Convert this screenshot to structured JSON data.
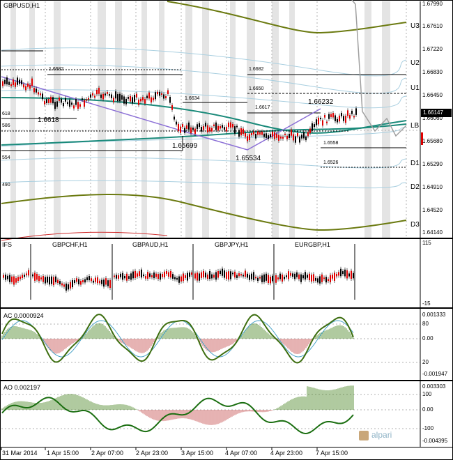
{
  "main_chart": {
    "title": "GBPUSD,H1",
    "price_axis": [
      "1.67990",
      "1.67610",
      "1.67220",
      "1.66830",
      "1.66450",
      "1.66060",
      "1.65680",
      "1.65290",
      "1.64910",
      "1.64520",
      "1.64140"
    ],
    "current_price": "1.66147",
    "pivots": [
      "U3",
      "U2",
      "U1",
      "LB",
      "D1",
      "D2",
      "D3"
    ],
    "levels": [
      "1.6682",
      "1.6634",
      "1.6682",
      "1.6650",
      "1.6617",
      "1.6558",
      "1.6526"
    ],
    "annotations": [
      "1.6618",
      "1.65699",
      "1.65534",
      "1.66232"
    ],
    "edge_labels": [
      "618",
      "586",
      "554",
      "490"
    ]
  },
  "ifs_panel": {
    "title": "IFS",
    "pairs": [
      "GBPCHF,H1",
      "GBPAUD,H1",
      "GBPJPY,H1",
      "EURGBP,H1"
    ],
    "axis": [
      "115",
      "-15"
    ]
  },
  "ac_panel": {
    "title": "AC 0.0000924",
    "axis": [
      "0.001333",
      "80",
      "0.00",
      "20",
      "-0.001947"
    ]
  },
  "ao_panel": {
    "title": "AO 0.002197",
    "axis": [
      "0.003303",
      "100",
      "0.00",
      "-100",
      "-0.004395"
    ]
  },
  "time_axis": [
    "31 Mar 2014",
    "1 Apr 15:00",
    "2 Apr 07:00",
    "2 Apr 23:00",
    "3 Apr 15:00",
    "4 Apr 07:00",
    "4 Apr 23:00",
    "7 Apr 15:00"
  ],
  "branding": {
    "logo_text": "alpari"
  },
  "colors": {
    "bull": "#000000",
    "bear": "#e00000",
    "olive": "#6b7a10",
    "teal": "#1a8a7a",
    "purple": "#8b6fd6",
    "sky": "#a9cfe0"
  }
}
